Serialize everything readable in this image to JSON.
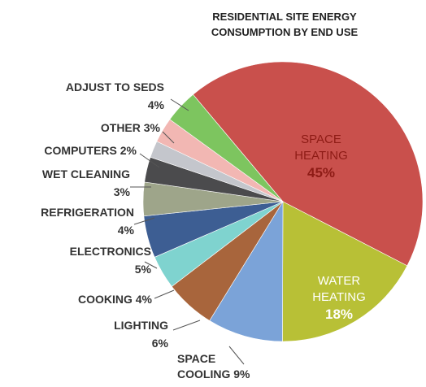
{
  "chart_data": {
    "type": "pie",
    "title_lines": [
      "RESIDENTIAL SITE ENERGY",
      "CONSUMPTION BY END USE"
    ],
    "slices": [
      {
        "name": "SPACE HEATING",
        "value": 45,
        "label_lines": [
          "SPACE",
          "HEATING"
        ],
        "pct": "45%",
        "color": "#c9504c",
        "text_color": "#8e1b15"
      },
      {
        "name": "WATER HEATING",
        "value": 18,
        "label_lines": [
          "WATER",
          "HEATING"
        ],
        "pct": "18%",
        "color": "#b8c036",
        "text_color": "#ffffff"
      },
      {
        "name": "SPACE COOLING",
        "value": 9,
        "label_lines": [
          "SPACE",
          "COOLING 9%"
        ],
        "color": "#7ba3d8"
      },
      {
        "name": "LIGHTING",
        "value": 6,
        "label_lines": [
          "LIGHTING",
          "6%"
        ],
        "color": "#a8653c"
      },
      {
        "name": "COOKING",
        "value": 4,
        "label_lines": [
          "COOKING 4%"
        ],
        "color": "#7fd3cf"
      },
      {
        "name": "ELECTRONICS",
        "value": 5,
        "label_lines": [
          "ELECTRONICS",
          "5%"
        ],
        "color": "#3d5e93"
      },
      {
        "name": "REFRIGERATION",
        "value": 4,
        "label_lines": [
          "REFRIGERATION",
          "4%"
        ],
        "color": "#9ea58a"
      },
      {
        "name": "WET CLEANING",
        "value": 3,
        "label_lines": [
          "WET CLEANING",
          "3%"
        ],
        "color": "#4b4b4d"
      },
      {
        "name": "COMPUTERS",
        "value": 2,
        "label_lines": [
          "COMPUTERS 2%"
        ],
        "color": "#c4c6cc"
      },
      {
        "name": "OTHER",
        "value": 3,
        "label_lines": [
          "OTHER 3%"
        ],
        "color": "#f2b7b3"
      },
      {
        "name": "ADJUST TO SEDS",
        "value": 4,
        "label_lines": [
          "ADJUST TO SEDS",
          "4%"
        ],
        "color": "#7dc55f"
      }
    ]
  }
}
